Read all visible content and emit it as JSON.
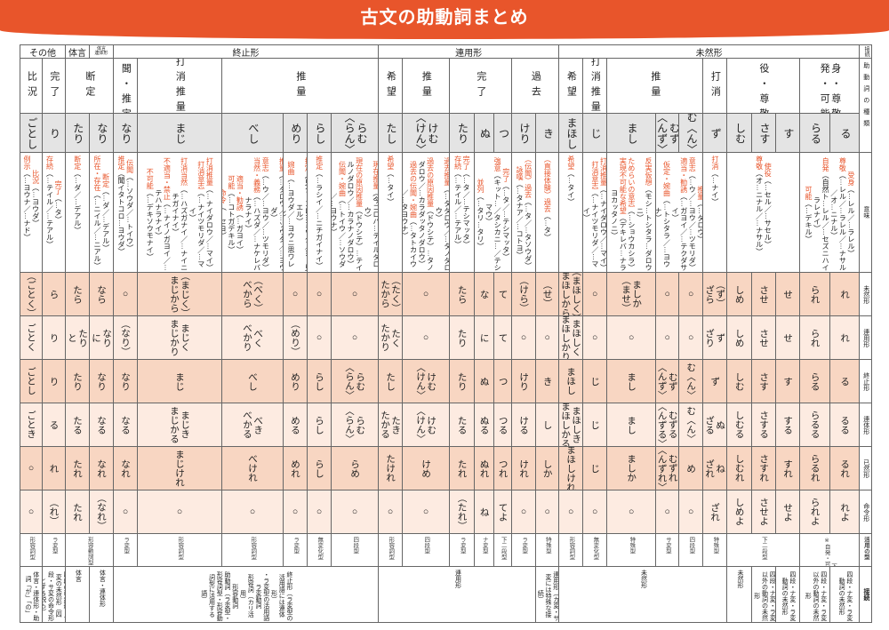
{
  "title": "古文の助動詞まとめ",
  "connection_groups": {
    "labels": [
      "その他",
      "体言",
      "体言\n連体形",
      "終止形",
      "連用形",
      "未然形"
    ],
    "side_label": "接続"
  },
  "categories": {
    "labels": [
      "比況",
      "完了",
      "断定",
      "伝聞・推定",
      "打消推量",
      "推量",
      "希望",
      "推量",
      "完了",
      "過去",
      "希望",
      "打消推量",
      "推量",
      "打消",
      "使役・尊敬",
      "受身・尊敬\n自発・可能"
    ],
    "side_label": "助動詞の種類"
  },
  "auxiliaries": [
    "ごとし",
    "り",
    "たり",
    "なり",
    "なり",
    "まじ",
    "べし",
    "めり",
    "らし",
    "らむ\n〈らん〉",
    "たし",
    "けむ\n〈けん〉",
    "たり",
    "ぬ",
    "つ",
    "けり",
    "き",
    "まほし",
    "じ",
    "まし",
    "むず\n〈んず〉",
    "む〈ん〉",
    "ず",
    "しむ",
    "さす",
    "す",
    "らる",
    "る"
  ],
  "meanings": {
    "side_label": "意味",
    "cells": [
      [
        {
          "term": "比況",
          "gloss": "（…ヨウダ）"
        },
        {
          "term": "例示",
          "gloss": "（…ヨウナ／…ナド）"
        }
      ],
      [
        {
          "term": "完了",
          "gloss": "（…タ）"
        },
        {
          "term": "存続",
          "gloss": "（…テイル／…テアル）"
        }
      ],
      [
        {
          "term": "断定",
          "gloss": "（…ダ／…デアル）"
        }
      ],
      [
        {
          "term": "断定",
          "gloss": "（…ダ／…デアル）"
        },
        {
          "term": "所在・存在",
          "gloss": "（…ニイル／…ニアル）"
        }
      ],
      [
        {
          "term": "伝聞",
          "gloss": "（…ソウダ／…トイウ）"
        },
        {
          "term": "推定",
          "gloss": "（聞イタトコロ…ヨウダ）"
        }
      ],
      [
        {
          "term": "打消推量",
          "gloss": "（…ナイダロウ／…マイ）"
        },
        {
          "term": "打消意志",
          "gloss": "（…ナイツモリダ／…マイ）"
        },
        {
          "term": "打消当然",
          "gloss": "（…ハズガナイ／…ナイニチガイナイ）"
        },
        {
          "term": "不適当・禁止",
          "gloss": "（…ナイノガヨイ／…テハナラナイ）"
        },
        {
          "term": "不可能",
          "gloss": "（…デキソウモナイ）"
        }
      ],
      [
        {
          "term": "推量",
          "gloss": "（…ダロウ／…ソウダ／…ヨウダ）"
        },
        {
          "term": "意志",
          "gloss": "（…ウ／…ヨウ／…ツモリダ）"
        },
        {
          "term": "当然・義務",
          "gloss": "（…ハズダ／…ナケレバナラナイ）"
        },
        {
          "term": "適当・勧誘",
          "gloss": "（…ガヨイ）"
        },
        {
          "term": "可能",
          "gloss": "（…コトガデキル）"
        },
        {
          "term": "命令",
          "gloss": "（…セヨ）"
        }
      ],
      [
        {
          "term": "推定",
          "gloss": "（見タトコロ…ヨウダ／…ト見エル）"
        },
        {
          "term": "婉曲",
          "gloss": "（…ヨウダ／…ヨウニ思ワレル）"
        }
      ],
      [
        {
          "term": "推定",
          "gloss": "（…ラシイ／…ニチガイナイ）"
        }
      ],
      [
        {
          "term": "現在推量",
          "gloss": "（今ゴロハ…テイルダロウ）"
        },
        {
          "term": "現在の原因推量",
          "gloss": "（ドウシテ）…テイルノダロウ／…カラナノダロウ）"
        },
        {
          "term": "伝聞・婉曲",
          "gloss": "（…トイウ／…ソウダ／…ヨウナ）"
        }
      ],
      [
        {
          "term": "希望",
          "gloss": "（…タイ）"
        }
      ],
      [
        {
          "term": "過去推量",
          "gloss": "（…タダロウ／…タノダロウ）"
        },
        {
          "term": "過去の原因推量",
          "gloss": "（ドウシテ）…タノダロウ／…カラダッタノダロウ）"
        },
        {
          "term": "過去の伝聞・婉曲",
          "gloss": "（…タトカイウ／…タヨウナ）"
        }
      ],
      [
        {
          "term": "完了",
          "gloss": "（…タ／…テシマッタ）"
        },
        {
          "term": "存続",
          "gloss": "（…テイル／…テアル）"
        }
      ],
      [
        {
          "term": "完了",
          "gloss": "（…タ／…テシマッタ）"
        },
        {
          "term": "強意",
          "gloss": "（キット…／タシカニ…／テシマウ）"
        },
        {
          "term": "並列",
          "gloss": "（…タリ…タリ）"
        }
      ],
      [
        {
          "term": "（伝聞）過去",
          "gloss": "（…タ／…タソウダ）"
        },
        {
          "term": "詠嘆",
          "gloss": "（…タナア／…コトヨ）"
        }
      ],
      [
        {
          "term": "（直接体験）過去",
          "gloss": "（…タ）"
        }
      ],
      [
        {
          "term": "希望",
          "gloss": "（…タイ）"
        }
      ],
      [
        {
          "term": "打消推量",
          "gloss": "（…ナイダロウ／…マイ）"
        },
        {
          "term": "打消意志",
          "gloss": "（…ナイツモリダ／…マイ）"
        }
      ],
      [
        {
          "term": "反実仮想",
          "gloss": "（モシ…トシタラ…ダロウニ）"
        },
        {
          "term": "ためらいの意志",
          "gloss": "（…ショウカシラ）"
        },
        {
          "term": "実現不可能な希望",
          "gloss": "（デキレバ…ナラヨカッタノニ）"
        }
      ],
      [
        {
          "term": "推量",
          "gloss": "（…ダロウ）"
        },
        {
          "term": "意志",
          "gloss": "（…ウ／…ヨウ／…ツモリダ）"
        },
        {
          "term": "適当・勧誘",
          "gloss": "（…ガヨイ／…テクダサイ）"
        },
        {
          "term": "仮定・婉曲",
          "gloss": "（…トシタラ／…ヨウナ）"
        }
      ],
      [
        {
          "term": "打消",
          "gloss": "（…ナイ）"
        }
      ],
      [
        {
          "term": "使役",
          "gloss": "（…セル／…サセル）"
        },
        {
          "term": "尊敬",
          "gloss": "（オ…ニナル／…ナサル）"
        }
      ],
      [
        {
          "term": "受身",
          "gloss": "（…レル／…ラレル）"
        },
        {
          "term": "尊敬",
          "gloss": "（…レル／…ラレル／…ナサル／オ…ニナル）"
        },
        {
          "term": "自発",
          "gloss": "（自然ト…レル／…セズニハイラレナイ）"
        },
        {
          "term": "可能",
          "gloss": "（…デキル）"
        }
      ]
    ]
  },
  "conjugations": [
    {
      "label": "未然形",
      "values": [
        "（ごとく）",
        "ら",
        "たら",
        "なら",
        "○",
        "（まじく）\nまじから",
        "（べく）\nべから",
        "○",
        "○",
        "○",
        "（たく）\nたから",
        "○",
        "たら",
        "な",
        "て",
        "（けら）",
        "（せ）",
        "（まほしく）\nまほしから",
        "○",
        "ましか\n（ませ）",
        "○",
        "○",
        "（ず）\nざら",
        "しめ",
        "させ",
        "せ",
        "られ",
        "れ"
      ]
    },
    {
      "label": "連用形",
      "values": [
        "ごとく",
        "り",
        "たり\nと",
        "なり\nに",
        "（なり）",
        "まじく\nまじかり",
        "べく\nべかり",
        "（めり）",
        "○",
        "○",
        "たく\nたかり",
        "○",
        "たり",
        "に",
        "て",
        "○",
        "○",
        "まほしく\nまほしかり",
        "○",
        "○",
        "○",
        "○",
        "ず\nざり",
        "しめ",
        "させ",
        "せ",
        "られ",
        "れ"
      ]
    },
    {
      "label": "終止形",
      "values": [
        "ごとし",
        "り",
        "たり",
        "なり",
        "なり",
        "まじ",
        "べし",
        "めり",
        "らし",
        "らむ\n〈らん〉",
        "たし",
        "けむ\n〈けん〉",
        "たり",
        "ぬ",
        "つ",
        "けり",
        "き",
        "まほし",
        "じ",
        "まし",
        "むず\n〈んず〉",
        "む〈ん〉",
        "ず",
        "しむ",
        "さす",
        "す",
        "らる",
        "る"
      ]
    },
    {
      "label": "連体形",
      "values": [
        "ごとき",
        "る",
        "たる",
        "なる",
        "なる",
        "まじき\nまじかる",
        "べき\nべかる",
        "める",
        "らし",
        "らむ\n〈らん〉",
        "たき\nたかる",
        "けむ\n〈けん〉",
        "たる",
        "ぬる",
        "つる",
        "ける",
        "し",
        "まほしき\nまほしかる",
        "じ",
        "まし",
        "むずる\n〈んずる〉",
        "む〈ん〉",
        "ぬ\nざる",
        "しむる",
        "さする",
        "する",
        "らるる",
        "るる"
      ]
    },
    {
      "label": "已然形",
      "values": [
        "○",
        "れ",
        "たれ",
        "なれ",
        "なれ",
        "まじけれ",
        "べけれ",
        "めれ",
        "らし",
        "らめ",
        "たけれ",
        "けめ",
        "たれ",
        "ぬれ",
        "つれ",
        "けれ",
        "しか",
        "まほしけれ",
        "じ",
        "ましか",
        "むずれ\n〈んずれ〉",
        "め",
        "ね\nざれ",
        "しむれ",
        "さすれ",
        "すれ",
        "らるれ",
        "るれ"
      ]
    },
    {
      "label": "命令形",
      "values": [
        "○",
        "（れ）",
        "たれ",
        "（なれ）",
        "○",
        "○",
        "○",
        "○",
        "○",
        "○",
        "○",
        "○",
        "（たれ）",
        "ね",
        "てよ",
        "○",
        "○",
        "○",
        "○",
        "○",
        "○",
        "○",
        "ざれ",
        "しめよ",
        "させよ",
        "せよ",
        "られよ",
        "れよ"
      ]
    }
  ],
  "types": {
    "side_label": "活用の型",
    "cells": [
      "形容詞型",
      "ラ変型",
      "形容動詞型",
      "ラ変型",
      "形容詞型",
      "形容詞型",
      "ラ変型",
      "無変化型",
      "四段型",
      "形容詞型",
      "四段型",
      "ラ変型",
      "ナ変型",
      "下二段型",
      "ラ変型",
      "特殊型",
      "形容詞型",
      "無変化型",
      "特殊型",
      "サ変型",
      "四段型",
      "特殊型",
      "下二段型",
      "下二段型\n※自発・可能は命令形がない"
    ]
  },
  "connections": {
    "side_label": "接続",
    "cells": [
      "体言・連体形・助詞「が」「の」",
      "四段の已然形・サ変の未然形（四段・サ変の命令形とする説も）",
      "体言",
      "体言・連体形",
      "終止形（ラ変型の活用語には連体形）\n・ラ変型の活用語\nラ変動詞\n形容詞（カリ活用）\n形容動詞\n助動詞（ラ変型・形容詞型・形容動詞型に活用する語）",
      "連用形",
      "連用形（カ変・サ変には特殊な接続）",
      "未然形",
      "未然形",
      "四段・ナ変・ラ変以外の動詞の未然形",
      "四段・ナ変・ラ変動詞の未然形",
      "四段・ナ変・ラ変以外の動詞の未然形",
      "四段・ナ変・ラ変動詞の未然形"
    ]
  },
  "colors": {
    "accent": "#e8552b",
    "row_dark": "#f8d6c2",
    "row_light": "#fdebe1",
    "aux_bg": "#e4e4e4"
  }
}
